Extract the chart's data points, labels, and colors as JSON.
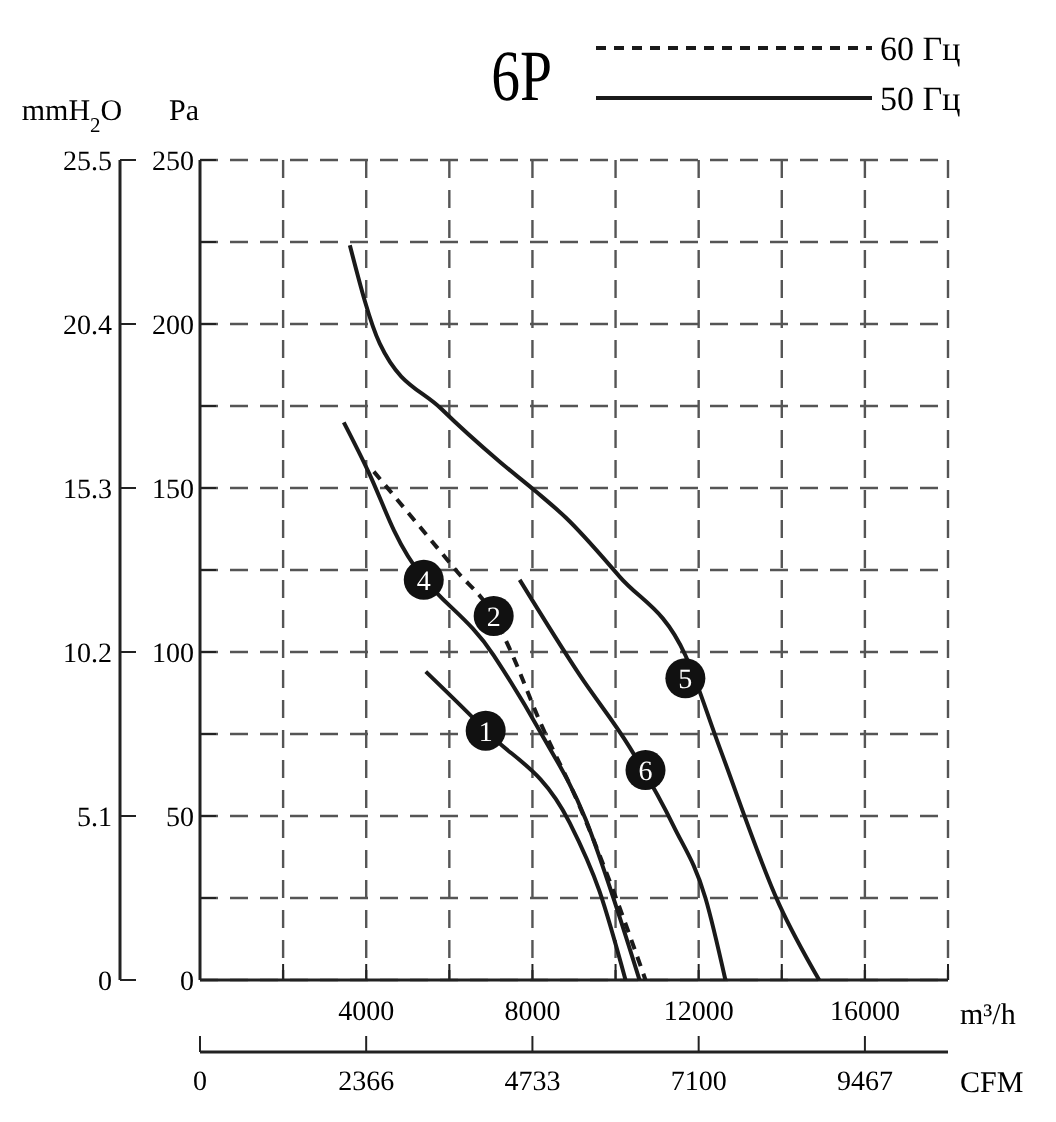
{
  "chart_data": {
    "type": "line",
    "title": "6P",
    "xlabel": "m³/h",
    "x2label": "CFM",
    "ylabel": "Pa",
    "y2label": "mmH$_{2}$O",
    "xlim": [
      0,
      18000
    ],
    "xticks": [
      {
        "value": 2000,
        "label": null
      },
      4000,
      {
        "value": 6000,
        "label": null
      },
      8000,
      {
        "value": 10000,
        "label": null
      },
      12000,
      {
        "value": 14000,
        "label": null
      },
      16000,
      {
        "value": 18000,
        "label": null
      }
    ],
    "x2lim": [
      0,
      10650
    ],
    "x2ticks": [
      0,
      2366,
      4733,
      7100,
      9467
    ],
    "ylim": [
      0,
      250
    ],
    "yticks": [
      0,
      {
        "value": 25,
        "label": null
      },
      50,
      {
        "value": 75,
        "label": null
      },
      100,
      {
        "value": 125,
        "label": null
      },
      150,
      {
        "value": 175,
        "label": null
      },
      200,
      {
        "value": 225,
        "label": null
      },
      250
    ],
    "y2lim": [
      0,
      25.5
    ],
    "y2ticks": [
      0,
      5.1,
      10.2,
      15.3,
      20.4,
      25.5
    ],
    "grid": true,
    "legend": "top right",
    "marker": "none",
    "series": [
      {
        "name": "60 Гц",
        "color": "#1a1a1a",
        "line_style": "dashed",
        "x": [
          4183,
          6154,
          7067,
          7452,
          8173,
          9135,
          9952,
          10721
        ],
        "values": [
          155,
          125,
          111,
          101,
          79,
          53,
          27,
          0
        ]
      },
      {
        "name": "50 Гц",
        "color": "#1a1a1a",
        "line_style": "solid",
        "x": [
          3606,
          4327,
          5817,
          7212,
          8077,
          8800,
          10096,
          11680,
          12500,
          13940,
          14900
        ],
        "values": [
          224,
          194,
          174,
          158,
          149,
          141,
          123,
          99,
          71,
          23,
          0
        ]
      },
      {
        "color": "#1a1a1a",
        "line_style": "solid",
        "x": [
          3460,
          4087,
          4670,
          7067,
          8173,
          9280,
          10000,
          10577
        ],
        "values": [
          170,
          154,
          137,
          99,
          76,
          49,
          23,
          0
        ]
      },
      {
        "color": "#1a1a1a",
        "line_style": "solid",
        "x": [
          5433,
          6875,
          8894,
          9615,
          10240
        ],
        "values": [
          94,
          76,
          48,
          27,
          0
        ]
      },
      {
        "color": "#1a1a1a",
        "line_style": "solid",
        "x": [
          7692,
          9135,
          10337,
          11394,
          12163,
          12644
        ],
        "values": [
          122,
          93,
          71,
          47,
          25,
          0
        ]
      }
    ],
    "annotations": [
      {
        "text": "1",
        "x": 6875,
        "y": 76
      },
      {
        "text": "2",
        "x": 7067,
        "y": 111
      },
      {
        "text": "4",
        "x": 5385,
        "y": 122
      },
      {
        "text": "5",
        "x": 11680,
        "y": 92
      },
      {
        "text": "6",
        "x": 10721,
        "y": 64
      }
    ]
  }
}
